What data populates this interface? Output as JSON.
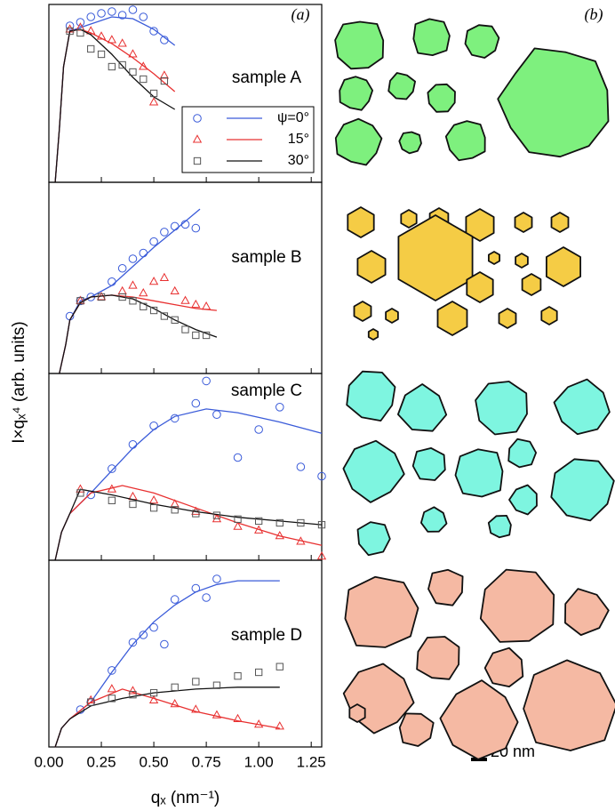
{
  "ylabel": "I×qₓ⁴ (arb. units)",
  "panel_labels": [
    "(a)",
    "(b)"
  ],
  "scale_bar": "20 nm",
  "chart_data": [
    {
      "type": "scatter",
      "title": "sample A",
      "xlim": [
        0,
        1.3
      ],
      "ylim": [
        0,
        10
      ],
      "series": [
        {
          "name": "ψ=0°",
          "color": "#3a5bd9",
          "marker": "circle",
          "x": [
            0.1,
            0.15,
            0.2,
            0.25,
            0.3,
            0.35,
            0.4,
            0.45,
            0.5,
            0.55
          ],
          "values": [
            8.8,
            9.0,
            9.3,
            9.5,
            9.6,
            9.4,
            9.7,
            9.3,
            8.5,
            8.0
          ],
          "fit_x": [
            0.03,
            0.05,
            0.07,
            0.1,
            0.15,
            0.2,
            0.3,
            0.4,
            0.5,
            0.6
          ],
          "fit": [
            0,
            3,
            6.5,
            8.5,
            8.7,
            8.9,
            9.3,
            9.2,
            8.6,
            7.7
          ]
        },
        {
          "name": "15°",
          "color": "#e83030",
          "marker": "triangle",
          "x": [
            0.1,
            0.15,
            0.2,
            0.25,
            0.3,
            0.35,
            0.4,
            0.45,
            0.5,
            0.55
          ],
          "values": [
            8.6,
            8.7,
            8.5,
            8.2,
            8.0,
            7.8,
            7.2,
            6.5,
            4.5,
            6.0
          ],
          "fit_x": [
            0.03,
            0.05,
            0.07,
            0.1,
            0.15,
            0.2,
            0.3,
            0.4,
            0.5,
            0.6
          ],
          "fit": [
            0,
            3,
            6.5,
            8.5,
            8.6,
            8.4,
            7.8,
            7.0,
            6.1,
            5.1
          ]
        },
        {
          "name": "30°",
          "color": "#555555",
          "line_color": "#111111",
          "marker": "square",
          "x": [
            0.1,
            0.15,
            0.2,
            0.25,
            0.3,
            0.35,
            0.4,
            0.45,
            0.5,
            0.55
          ],
          "values": [
            8.5,
            8.4,
            7.5,
            7.2,
            6.5,
            6.6,
            6.2,
            5.8,
            5.0,
            5.7
          ],
          "fit_x": [
            0.03,
            0.05,
            0.07,
            0.1,
            0.15,
            0.2,
            0.3,
            0.4,
            0.5,
            0.6
          ],
          "fit": [
            0,
            3,
            6.5,
            8.5,
            8.6,
            8.3,
            7.2,
            5.9,
            4.8,
            4.1
          ]
        }
      ]
    },
    {
      "type": "scatter",
      "title": "sample B",
      "xlim": [
        0,
        1.3
      ],
      "ylim": [
        0,
        10
      ],
      "series": [
        {
          "color": "#3a5bd9",
          "marker": "circle",
          "x": [
            0.1,
            0.15,
            0.2,
            0.3,
            0.35,
            0.4,
            0.45,
            0.5,
            0.55,
            0.6,
            0.65,
            0.7
          ],
          "values": [
            3,
            3.8,
            4.0,
            4.8,
            5.5,
            6,
            6.3,
            6.9,
            7.4,
            7.7,
            7.8,
            7.6
          ],
          "fit_x": [
            0.05,
            0.08,
            0.1,
            0.15,
            0.2,
            0.3,
            0.4,
            0.5,
            0.6,
            0.72
          ],
          "fit": [
            0,
            1.5,
            2.8,
            3.8,
            4.0,
            4.6,
            5.6,
            6.6,
            7.5,
            8.6
          ]
        },
        {
          "color": "#e83030",
          "marker": "triangle",
          "x": [
            0.15,
            0.25,
            0.35,
            0.4,
            0.45,
            0.5,
            0.55,
            0.6,
            0.65,
            0.7,
            0.75
          ],
          "values": [
            3.8,
            4.0,
            4.3,
            4.6,
            4.2,
            4.8,
            5,
            4.3,
            3.8,
            3.6,
            3.5
          ],
          "fit_x": [
            0.05,
            0.08,
            0.1,
            0.15,
            0.2,
            0.3,
            0.4,
            0.5,
            0.6,
            0.7,
            0.8
          ],
          "fit": [
            0,
            1.5,
            2.8,
            3.7,
            4.0,
            4.1,
            4.0,
            3.8,
            3.6,
            3.4,
            3.3
          ]
        },
        {
          "color": "#555555",
          "line_color": "#111111",
          "marker": "square",
          "x": [
            0.15,
            0.25,
            0.35,
            0.4,
            0.45,
            0.5,
            0.55,
            0.6,
            0.65,
            0.7,
            0.75
          ],
          "values": [
            3.8,
            4.0,
            4.0,
            3.8,
            3.5,
            3.3,
            3.0,
            2.8,
            2.3,
            2.0,
            2.0
          ],
          "fit_x": [
            0.05,
            0.08,
            0.1,
            0.15,
            0.2,
            0.3,
            0.4,
            0.5,
            0.6,
            0.7,
            0.8
          ],
          "fit": [
            0,
            1.5,
            2.8,
            3.7,
            4.0,
            4.1,
            3.9,
            3.4,
            2.8,
            2.3,
            1.9
          ]
        }
      ]
    },
    {
      "type": "scatter",
      "title": "sample C",
      "xlim": [
        0,
        1.3
      ],
      "ylim": [
        0,
        10
      ],
      "series": [
        {
          "color": "#3a5bd9",
          "marker": "circle",
          "x": [
            0.2,
            0.3,
            0.4,
            0.5,
            0.6,
            0.7,
            0.75,
            0.8,
            0.9,
            1.0,
            1.1,
            1.2,
            1.3
          ],
          "values": [
            3.5,
            4.9,
            6.2,
            7.2,
            7.6,
            8.4,
            9.6,
            7.8,
            5.5,
            7.0,
            8.2,
            5.0,
            4.5
          ],
          "fit_x": [
            0.03,
            0.06,
            0.1,
            0.2,
            0.3,
            0.4,
            0.5,
            0.6,
            0.75,
            0.9,
            1.1,
            1.3
          ],
          "fit": [
            0,
            1.5,
            2.5,
            3.6,
            4.8,
            6.0,
            7.0,
            7.7,
            8.1,
            7.9,
            7.4,
            6.8
          ]
        },
        {
          "color": "#e83030",
          "marker": "triangle",
          "x": [
            0.15,
            0.3,
            0.4,
            0.5,
            0.6,
            0.7,
            0.8,
            0.9,
            1.0,
            1.1,
            1.2,
            1.3
          ],
          "values": [
            3.8,
            3.8,
            3.4,
            3.2,
            3.0,
            2.6,
            2.2,
            1.8,
            1.6,
            1.3,
            1.0,
            0.2
          ],
          "fit_x": [
            0.03,
            0.06,
            0.1,
            0.2,
            0.35,
            0.5,
            0.7,
            0.9,
            1.1,
            1.3
          ],
          "fit": [
            0,
            1.5,
            2.5,
            3.6,
            4.0,
            3.6,
            2.8,
            2.0,
            1.3,
            0.8
          ]
        },
        {
          "color": "#555555",
          "line_color": "#111111",
          "marker": "square",
          "x": [
            0.15,
            0.3,
            0.4,
            0.5,
            0.6,
            0.7,
            0.8,
            0.9,
            1.0,
            1.1,
            1.2,
            1.3
          ],
          "values": [
            3.6,
            3.2,
            3.0,
            2.8,
            2.7,
            2.5,
            2.4,
            2.2,
            2.1,
            2.0,
            2.0,
            1.9
          ],
          "fit_x": [
            0.03,
            0.06,
            0.1,
            0.15,
            0.3,
            0.5,
            0.7,
            0.9,
            1.1,
            1.3
          ],
          "fit": [
            0,
            1.5,
            2.5,
            3.8,
            3.5,
            3.0,
            2.6,
            2.3,
            2.1,
            1.9
          ]
        }
      ]
    },
    {
      "type": "scatter",
      "title": "sample D",
      "xlim": [
        0,
        1.3
      ],
      "ylim": [
        0,
        10
      ],
      "xlabel": "qₓ (nm⁻¹)",
      "xticks": [
        {
          "value": 0,
          "label": "0.00"
        },
        {
          "value": 0.25,
          "label": "0.25"
        },
        {
          "value": 0.5,
          "label": "0.50"
        },
        {
          "value": 0.75,
          "label": "0.75"
        },
        {
          "value": 1,
          "label": "1.00"
        },
        {
          "value": 1.25,
          "label": "1.25"
        }
      ],
      "series": [
        {
          "color": "#3a5bd9",
          "marker": "circle",
          "x": [
            0.15,
            0.2,
            0.3,
            0.4,
            0.45,
            0.5,
            0.55,
            0.6,
            0.7,
            0.75,
            0.8
          ],
          "values": [
            2.0,
            2.4,
            4.1,
            5.6,
            6.0,
            6.4,
            5.5,
            7.9,
            8.5,
            8.0,
            9.0
          ],
          "fit_x": [
            0.03,
            0.06,
            0.1,
            0.2,
            0.3,
            0.4,
            0.5,
            0.6,
            0.7,
            0.8,
            0.9,
            1.1
          ],
          "fit": [
            0,
            1.0,
            1.5,
            2.4,
            4.0,
            5.5,
            6.7,
            7.6,
            8.3,
            8.7,
            8.9,
            8.9
          ]
        },
        {
          "color": "#e83030",
          "marker": "triangle",
          "x": [
            0.2,
            0.3,
            0.4,
            0.5,
            0.6,
            0.7,
            0.8,
            0.9,
            1.0,
            1.1
          ],
          "values": [
            2.5,
            3.1,
            3.0,
            2.5,
            2.3,
            2.0,
            1.7,
            1.5,
            1.2,
            1.1
          ],
          "fit_x": [
            0.03,
            0.06,
            0.1,
            0.2,
            0.35,
            0.5,
            0.7,
            0.9,
            1.1
          ],
          "fit": [
            0,
            1.0,
            1.5,
            2.4,
            3.1,
            2.6,
            1.9,
            1.4,
            1.0
          ]
        },
        {
          "color": "#555555",
          "line_color": "#111111",
          "marker": "square",
          "x": [
            0.2,
            0.3,
            0.4,
            0.5,
            0.6,
            0.7,
            0.8,
            0.9,
            1.0,
            1.1
          ],
          "values": [
            2.4,
            2.6,
            2.8,
            2.9,
            3.2,
            3.5,
            3.3,
            3.8,
            4.0,
            4.3
          ],
          "fit_x": [
            0.03,
            0.06,
            0.1,
            0.2,
            0.35,
            0.5,
            0.7,
            0.9,
            1.1
          ],
          "fit": [
            0,
            1.0,
            1.5,
            2.2,
            2.6,
            2.9,
            3.1,
            3.2,
            3.2
          ]
        }
      ]
    }
  ]
}
